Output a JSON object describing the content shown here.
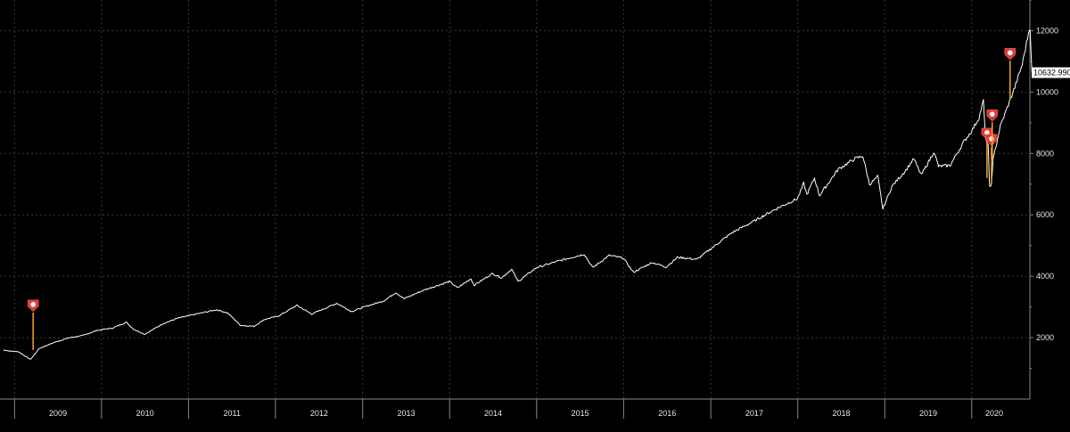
{
  "chart_data": {
    "type": "line",
    "title": "",
    "xlabel": "",
    "ylabel": "",
    "x_tick_labels": [
      "2009",
      "2010",
      "2011",
      "2012",
      "2013",
      "2014",
      "2015",
      "2016",
      "2017",
      "2018",
      "2019",
      "2020"
    ],
    "y_tick_labels": [
      "2000",
      "4000",
      "6000",
      "8000",
      "10000",
      "12000"
    ],
    "xlim": [
      "2008-11",
      "2020-09"
    ],
    "ylim": [
      0,
      13000
    ],
    "grid": true,
    "last_value_label": "10632.990",
    "colors": {
      "background": "#000000",
      "series": "#ffffff",
      "event_marker": "#e03a3a",
      "event_stem": "#f5a623"
    },
    "series": [
      {
        "points": [
          [
            "2008-11-15",
            1600
          ],
          [
            "2008-12-15",
            1560
          ],
          [
            "2009-01-15",
            1550
          ],
          [
            "2009-02-15",
            1400
          ],
          [
            "2009-03-09",
            1290
          ],
          [
            "2009-04-15",
            1650
          ],
          [
            "2009-06-15",
            1840
          ],
          [
            "2009-08-15",
            1990
          ],
          [
            "2009-10-15",
            2070
          ],
          [
            "2009-12-15",
            2240
          ],
          [
            "2010-02-15",
            2310
          ],
          [
            "2010-04-15",
            2500
          ],
          [
            "2010-05-15",
            2280
          ],
          [
            "2010-07-01",
            2110
          ],
          [
            "2010-09-15",
            2450
          ],
          [
            "2010-11-15",
            2630
          ],
          [
            "2011-02-15",
            2790
          ],
          [
            "2011-04-30",
            2910
          ],
          [
            "2011-06-15",
            2800
          ],
          [
            "2011-08-08",
            2400
          ],
          [
            "2011-10-03",
            2370
          ],
          [
            "2011-11-15",
            2590
          ],
          [
            "2012-01-15",
            2710
          ],
          [
            "2012-03-31",
            3050
          ],
          [
            "2012-06-01",
            2770
          ],
          [
            "2012-09-15",
            3120
          ],
          [
            "2012-11-15",
            2850
          ],
          [
            "2013-01-15",
            3020
          ],
          [
            "2013-03-31",
            3200
          ],
          [
            "2013-05-20",
            3470
          ],
          [
            "2013-06-24",
            3270
          ],
          [
            "2013-09-15",
            3550
          ],
          [
            "2013-12-31",
            3830
          ],
          [
            "2014-02-03",
            3620
          ],
          [
            "2014-03-31",
            3920
          ],
          [
            "2014-04-14",
            3710
          ],
          [
            "2014-06-30",
            4090
          ],
          [
            "2014-08-07",
            3950
          ],
          [
            "2014-09-18",
            4230
          ],
          [
            "2014-10-15",
            3830
          ],
          [
            "2014-12-31",
            4280
          ],
          [
            "2015-03-31",
            4490
          ],
          [
            "2015-05-31",
            4620
          ],
          [
            "2015-07-20",
            4720
          ],
          [
            "2015-08-24",
            4280
          ],
          [
            "2015-11-02",
            4680
          ],
          [
            "2015-12-31",
            4590
          ],
          [
            "2016-02-11",
            4130
          ],
          [
            "2016-04-30",
            4450
          ],
          [
            "2016-06-27",
            4300
          ],
          [
            "2016-08-15",
            4620
          ],
          [
            "2016-11-04",
            4550
          ],
          [
            "2016-12-31",
            4890
          ],
          [
            "2017-03-31",
            5420
          ],
          [
            "2017-06-30",
            5790
          ],
          [
            "2017-09-30",
            6190
          ],
          [
            "2017-12-31",
            6530
          ],
          [
            "2018-01-26",
            7030
          ],
          [
            "2018-02-08",
            6660
          ],
          [
            "2018-03-12",
            7200
          ],
          [
            "2018-04-02",
            6630
          ],
          [
            "2018-06-20",
            7490
          ],
          [
            "2018-08-29",
            7830
          ],
          [
            "2018-10-01",
            7920
          ],
          [
            "2018-10-29",
            6990
          ],
          [
            "2018-12-03",
            7250
          ],
          [
            "2018-12-24",
            6190
          ],
          [
            "2019-01-31",
            6930
          ],
          [
            "2019-03-31",
            7460
          ],
          [
            "2019-05-03",
            7830
          ],
          [
            "2019-06-03",
            7290
          ],
          [
            "2019-07-26",
            8050
          ],
          [
            "2019-08-15",
            7580
          ],
          [
            "2019-10-02",
            7610
          ],
          [
            "2019-11-29",
            8380
          ],
          [
            "2019-12-31",
            8730
          ],
          [
            "2020-01-31",
            9150
          ],
          [
            "2020-02-19",
            9720
          ],
          [
            "2020-02-28",
            8460
          ],
          [
            "2020-03-10",
            8300
          ],
          [
            "2020-03-16",
            6900
          ],
          [
            "2020-03-20",
            6880
          ],
          [
            "2020-03-23",
            6990
          ],
          [
            "2020-03-31",
            7810
          ],
          [
            "2020-04-30",
            8890
          ],
          [
            "2020-05-29",
            9490
          ],
          [
            "2020-06-30",
            10160
          ],
          [
            "2020-07-31",
            10900
          ],
          [
            "2020-08-31",
            12110
          ],
          [
            "2020-09-02",
            12050
          ],
          [
            "2020-09-08",
            10850
          ],
          [
            "2020-09-10",
            10632.99
          ]
        ]
      }
    ],
    "event_markers": [
      {
        "date": "2009-03-20",
        "value": 1600
      },
      {
        "date": "2020-03-05",
        "value": 7200
      },
      {
        "date": "2020-03-24",
        "value": 7000
      },
      {
        "date": "2020-03-27",
        "value": 7800
      },
      {
        "date": "2020-06-10",
        "value": 9800
      }
    ]
  }
}
